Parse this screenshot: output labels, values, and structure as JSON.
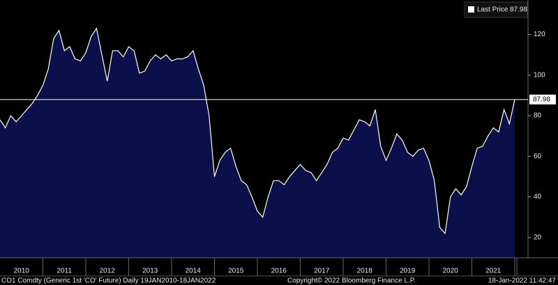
{
  "chart_data": {
    "type": "area",
    "categories": [
      null,
      null,
      null,
      null,
      "2010",
      null,
      null,
      null,
      null,
      null,
      null,
      null,
      "2011",
      null,
      null,
      null,
      null,
      null,
      null,
      null,
      "2012",
      null,
      null,
      null,
      null,
      null,
      null,
      null,
      "2013",
      null,
      null,
      null,
      null,
      null,
      null,
      null,
      "2014",
      null,
      null,
      null,
      null,
      null,
      null,
      null,
      "2015",
      null,
      null,
      null,
      null,
      null,
      null,
      null,
      "2016",
      null,
      null,
      null,
      null,
      null,
      null,
      null,
      "2017",
      null,
      null,
      null,
      null,
      null,
      null,
      null,
      "2018",
      null,
      null,
      null,
      null,
      null,
      null,
      null,
      "2019",
      null,
      null,
      null,
      null,
      null,
      null,
      null,
      "2020",
      null,
      null,
      null,
      null,
      null,
      null,
      null,
      "2021",
      null,
      null,
      null,
      null
    ],
    "series": [
      {
        "name": "Last Price",
        "color": "#ffffff",
        "fill": "#0b0f4a",
        "values": [
          78,
          74,
          80,
          77,
          80,
          83,
          86,
          90,
          95,
          103,
          118,
          122,
          112,
          114,
          108,
          107,
          111,
          119,
          123,
          110,
          97,
          112,
          112,
          109,
          114,
          112,
          101,
          102,
          107,
          110,
          108,
          110,
          107,
          108,
          108,
          109,
          112,
          103,
          95,
          80,
          50,
          58,
          62,
          64,
          55,
          48,
          46,
          40,
          33,
          30,
          40,
          48,
          48,
          46,
          50,
          53,
          56,
          53,
          52,
          48,
          52,
          56,
          62,
          64,
          69,
          68,
          73,
          78,
          77,
          75,
          83,
          65,
          58,
          64,
          71,
          68,
          62,
          60,
          63,
          64,
          58,
          48,
          25,
          22,
          40,
          44,
          41,
          45,
          55,
          64,
          65,
          70,
          74,
          72,
          83,
          76,
          87.98
        ]
      }
    ],
    "ylim": [
      10,
      137
    ],
    "yticks": [
      20,
      40,
      60,
      80,
      100,
      120
    ]
  },
  "footer": {
    "source": "CO1 Comdty (Generic 1st 'CO' Future)  Daily 19JAN2010-18JAN2022",
    "copyright": "Copyright© 2022 Bloomberg Finance L.P.",
    "timestamp": "18-Jan-2022 11:42:47"
  }
}
